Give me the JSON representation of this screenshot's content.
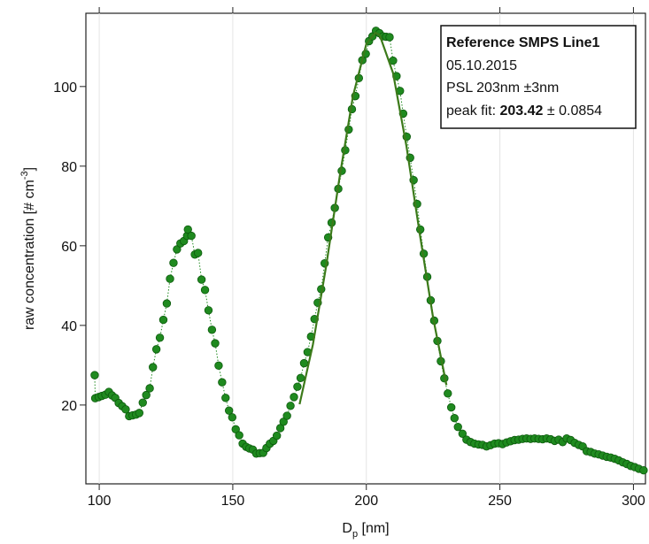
{
  "chart_data": {
    "type": "scatter",
    "xlabel": [
      "D",
      "p",
      " [nm]"
    ],
    "ylabel": [
      "raw concentration [# cm",
      "-3",
      "]"
    ],
    "xlim": [
      95,
      304.5
    ],
    "ylim": [
      0.2,
      118.4
    ],
    "xticks": [
      100,
      150,
      200,
      250,
      300
    ],
    "yticks": [
      20,
      40,
      60,
      80,
      100
    ],
    "xgrid": true,
    "annotation": {
      "title": "Reference SMPS Line1",
      "date": "05.10.2015",
      "standard": "PSL 203nm ±3nm",
      "fit_label": "peak fit:",
      "fit_value": "203.42",
      "fit_error": "± 0.0854"
    },
    "series": [
      {
        "color": "#1f8a1f",
        "line": "dotted",
        "x": [
          98.3,
          98.5,
          99.8,
          101,
          102.3,
          103.6,
          104.8,
          106,
          107.3,
          108.6,
          109.9,
          111.2,
          112.5,
          113.8,
          115,
          116.3,
          117.6,
          118.9,
          120.1,
          121.4,
          122.7,
          124,
          125.3,
          126.5,
          127.8,
          129.1,
          130.4,
          131.7,
          132.9,
          133.2,
          134.5,
          135.8,
          137,
          138.3,
          139.6,
          140.9,
          142.2,
          143.4,
          144.7,
          146,
          147.3,
          148.6,
          149.8,
          151.1,
          152.4,
          153.7,
          155,
          156.2,
          157.5,
          158.8,
          160.1,
          161.4,
          162.6,
          163.9,
          165.2,
          166.5,
          167.8,
          169,
          170.3,
          171.6,
          172.9,
          174.2,
          175.4,
          176.7,
          178,
          179.3,
          180.6,
          181.8,
          183.1,
          184.4,
          185.7,
          187,
          188.2,
          189.5,
          190.8,
          192.1,
          193.4,
          194.6,
          195.9,
          197.2,
          198.5,
          199.8,
          201,
          202.3,
          203.6,
          204.9,
          206.2,
          207.4,
          208.7,
          210,
          211.3,
          212.6,
          213.8,
          215.1,
          216.4,
          217.7,
          219,
          220.2,
          221.5,
          222.8,
          224.1,
          225.4,
          226.6,
          227.9,
          229.2,
          230.5,
          231.8,
          233,
          234.3,
          236,
          237.5,
          239,
          240.5,
          242,
          243.5,
          245,
          246.5,
          248,
          249.5,
          251,
          252.5,
          254,
          255.5,
          257,
          258.5,
          260,
          261.5,
          263,
          264.5,
          266,
          267.5,
          269,
          270.5,
          272,
          273.5,
          275,
          276.5,
          278,
          279.5,
          281,
          282.5,
          284,
          285.5,
          287,
          288.5,
          290,
          291.5,
          293,
          294.5,
          296,
          297.5,
          299,
          300.5,
          302,
          303.8
        ],
        "values": [
          27.5,
          21.7,
          22.0,
          22.3,
          22.6,
          23.3,
          22.4,
          21.8,
          20.5,
          19.7,
          18.9,
          17.2,
          17.4,
          17.6,
          18.0,
          20.6,
          22.5,
          24.2,
          29.5,
          34.0,
          36.9,
          41.4,
          45.5,
          51.7,
          55.7,
          59.1,
          60.6,
          61.2,
          62.5,
          64.1,
          62.5,
          57.8,
          58.2,
          51.5,
          48.9,
          43.8,
          38.9,
          35.5,
          29.9,
          25.7,
          21.8,
          18.6,
          16.9,
          13.9,
          12.4,
          10.3,
          9.5,
          9.1,
          8.8,
          7.8,
          7.9,
          8.0,
          9.2,
          10.3,
          11.0,
          12.3,
          14.2,
          15.8,
          17.3,
          19.8,
          22.0,
          24.6,
          26.8,
          30.5,
          33.3,
          37.2,
          41.6,
          45.7,
          49.1,
          55.6,
          62.1,
          65.8,
          69.5,
          74.3,
          78.8,
          84.0,
          89.2,
          94.3,
          97.6,
          102.1,
          106.6,
          108.2,
          111.4,
          112.6,
          114.0,
          113.4,
          112.6,
          112.5,
          112.4,
          106.5,
          102.6,
          98.9,
          93.2,
          87.4,
          82.1,
          76.5,
          70.5,
          64.1,
          58.0,
          52.2,
          46.3,
          41.2,
          36.1,
          31.0,
          26.7,
          22.9,
          19.4,
          16.7,
          14.5,
          12.8,
          11.3,
          10.7,
          10.3,
          10.1,
          10.0,
          9.6,
          9.9,
          10.3,
          10.4,
          10.2,
          10.6,
          10.9,
          11.2,
          11.3,
          11.5,
          11.6,
          11.5,
          11.6,
          11.5,
          11.4,
          11.6,
          11.4,
          11.0,
          11.3,
          10.7,
          11.6,
          11.2,
          10.5,
          10.0,
          9.6,
          8.4,
          8.2,
          7.8,
          7.6,
          7.3,
          7.0,
          6.8,
          6.5,
          6.1,
          5.6,
          5.2,
          4.7,
          4.4,
          4.0,
          3.6
        ]
      },
      {
        "color": "#3c7a1a",
        "line": "solid",
        "x": [
          175,
          180,
          185,
          190,
          195,
          200,
          203.4,
          205,
          210,
          215,
          220,
          225,
          230
        ],
        "values": [
          20.2,
          35.2,
          55.1,
          77.3,
          97.6,
          110.7,
          113.5,
          112.9,
          103.4,
          85.1,
          63.0,
          41.9,
          25.0
        ]
      }
    ]
  }
}
